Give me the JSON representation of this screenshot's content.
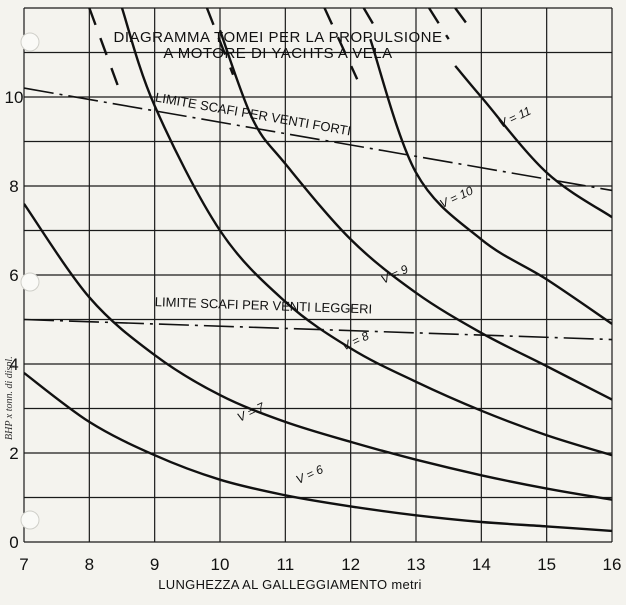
{
  "chart_data": {
    "type": "line",
    "title_lines": [
      "DIAGRAMMA TOMEI PER LA PROPULSIONE",
      "A MOTORE DI YACHTS A VELA"
    ],
    "xlabel": "LUNGHEZZA AL GALLEGGIAMENTO metri",
    "ylabel": "BHP x tonn. di displ.",
    "xlim": [
      7,
      16
    ],
    "ylim": [
      0,
      12
    ],
    "x_ticks": [
      7,
      8,
      9,
      10,
      11,
      12,
      13,
      14,
      15,
      16
    ],
    "y_ticks": [
      0,
      2,
      4,
      6,
      8,
      10
    ],
    "grid": true,
    "series": [
      {
        "name": "V = 6",
        "label": "V = 6",
        "x": [
          7,
          8,
          9,
          10,
          11,
          12,
          13,
          14,
          15,
          16
        ],
        "y": [
          3.8,
          2.7,
          1.95,
          1.4,
          1.05,
          0.8,
          0.6,
          0.45,
          0.35,
          0.25
        ],
        "label_at": [
          11.2,
          1.3
        ]
      },
      {
        "name": "V = 7",
        "label": "V = 7",
        "x": [
          7,
          8,
          9,
          10,
          11,
          12,
          13,
          14,
          15,
          16
        ],
        "y": [
          7.6,
          5.5,
          4.2,
          3.3,
          2.7,
          2.25,
          1.85,
          1.5,
          1.2,
          0.95
        ],
        "label_at": [
          10.3,
          2.7
        ]
      },
      {
        "name": "V = 8",
        "label": "V = 8",
        "x": [
          8.5,
          9,
          10,
          11,
          12,
          13,
          14,
          15,
          16
        ],
        "y": [
          12,
          9.8,
          7.0,
          5.4,
          4.35,
          3.6,
          2.95,
          2.4,
          1.95
        ],
        "label_at": [
          11.9,
          4.3
        ]
      },
      {
        "name": "V = 9",
        "label": "V = 9",
        "x": [
          10,
          10.5,
          11,
          12,
          13,
          14,
          15,
          16
        ],
        "y": [
          11.5,
          9.5,
          8.5,
          6.8,
          5.6,
          4.7,
          3.95,
          3.2
        ],
        "label_at": [
          12.5,
          5.8
        ]
      },
      {
        "name": "V = 10",
        "label": "V = 10",
        "x": [
          12.3,
          13,
          14,
          15,
          16
        ],
        "y": [
          11.3,
          8.3,
          6.8,
          5.9,
          4.9
        ],
        "label_at": [
          13.4,
          7.5
        ]
      },
      {
        "name": "V = 11",
        "label": "V = 11",
        "x": [
          13.6,
          14,
          15,
          16
        ],
        "y": [
          10.7,
          10.0,
          8.3,
          7.3
        ],
        "label_at": [
          14.3,
          9.3
        ]
      }
    ],
    "upper_dash_segments": [
      {
        "x": [
          8.0,
          8.5
        ],
        "y": [
          12.0,
          10.0
        ]
      },
      {
        "x": [
          9.8,
          10.2
        ],
        "y": [
          12.0,
          10.5
        ]
      },
      {
        "x": [
          11.6,
          12.1
        ],
        "y": [
          12.0,
          10.4
        ]
      },
      {
        "x": [
          12.2,
          12.4
        ],
        "y": [
          12.0,
          11.5
        ]
      },
      {
        "x": [
          13.2,
          13.5
        ],
        "y": [
          12.0,
          11.3
        ]
      },
      {
        "x": [
          13.6,
          13.8
        ],
        "y": [
          12.0,
          11.6
        ]
      }
    ],
    "limit_lines": [
      {
        "label": "LIMITE SCAFI PER VENTI FORTI",
        "x": [
          7,
          16
        ],
        "y": [
          10.2,
          7.9
        ],
        "label_at": [
          9.0,
          9.9
        ]
      },
      {
        "label": "LIMITE SCAFI PER VENTI LEGGERI",
        "x": [
          7,
          16
        ],
        "y": [
          5.0,
          4.55
        ],
        "label_at": [
          9.0,
          5.3
        ]
      }
    ]
  }
}
